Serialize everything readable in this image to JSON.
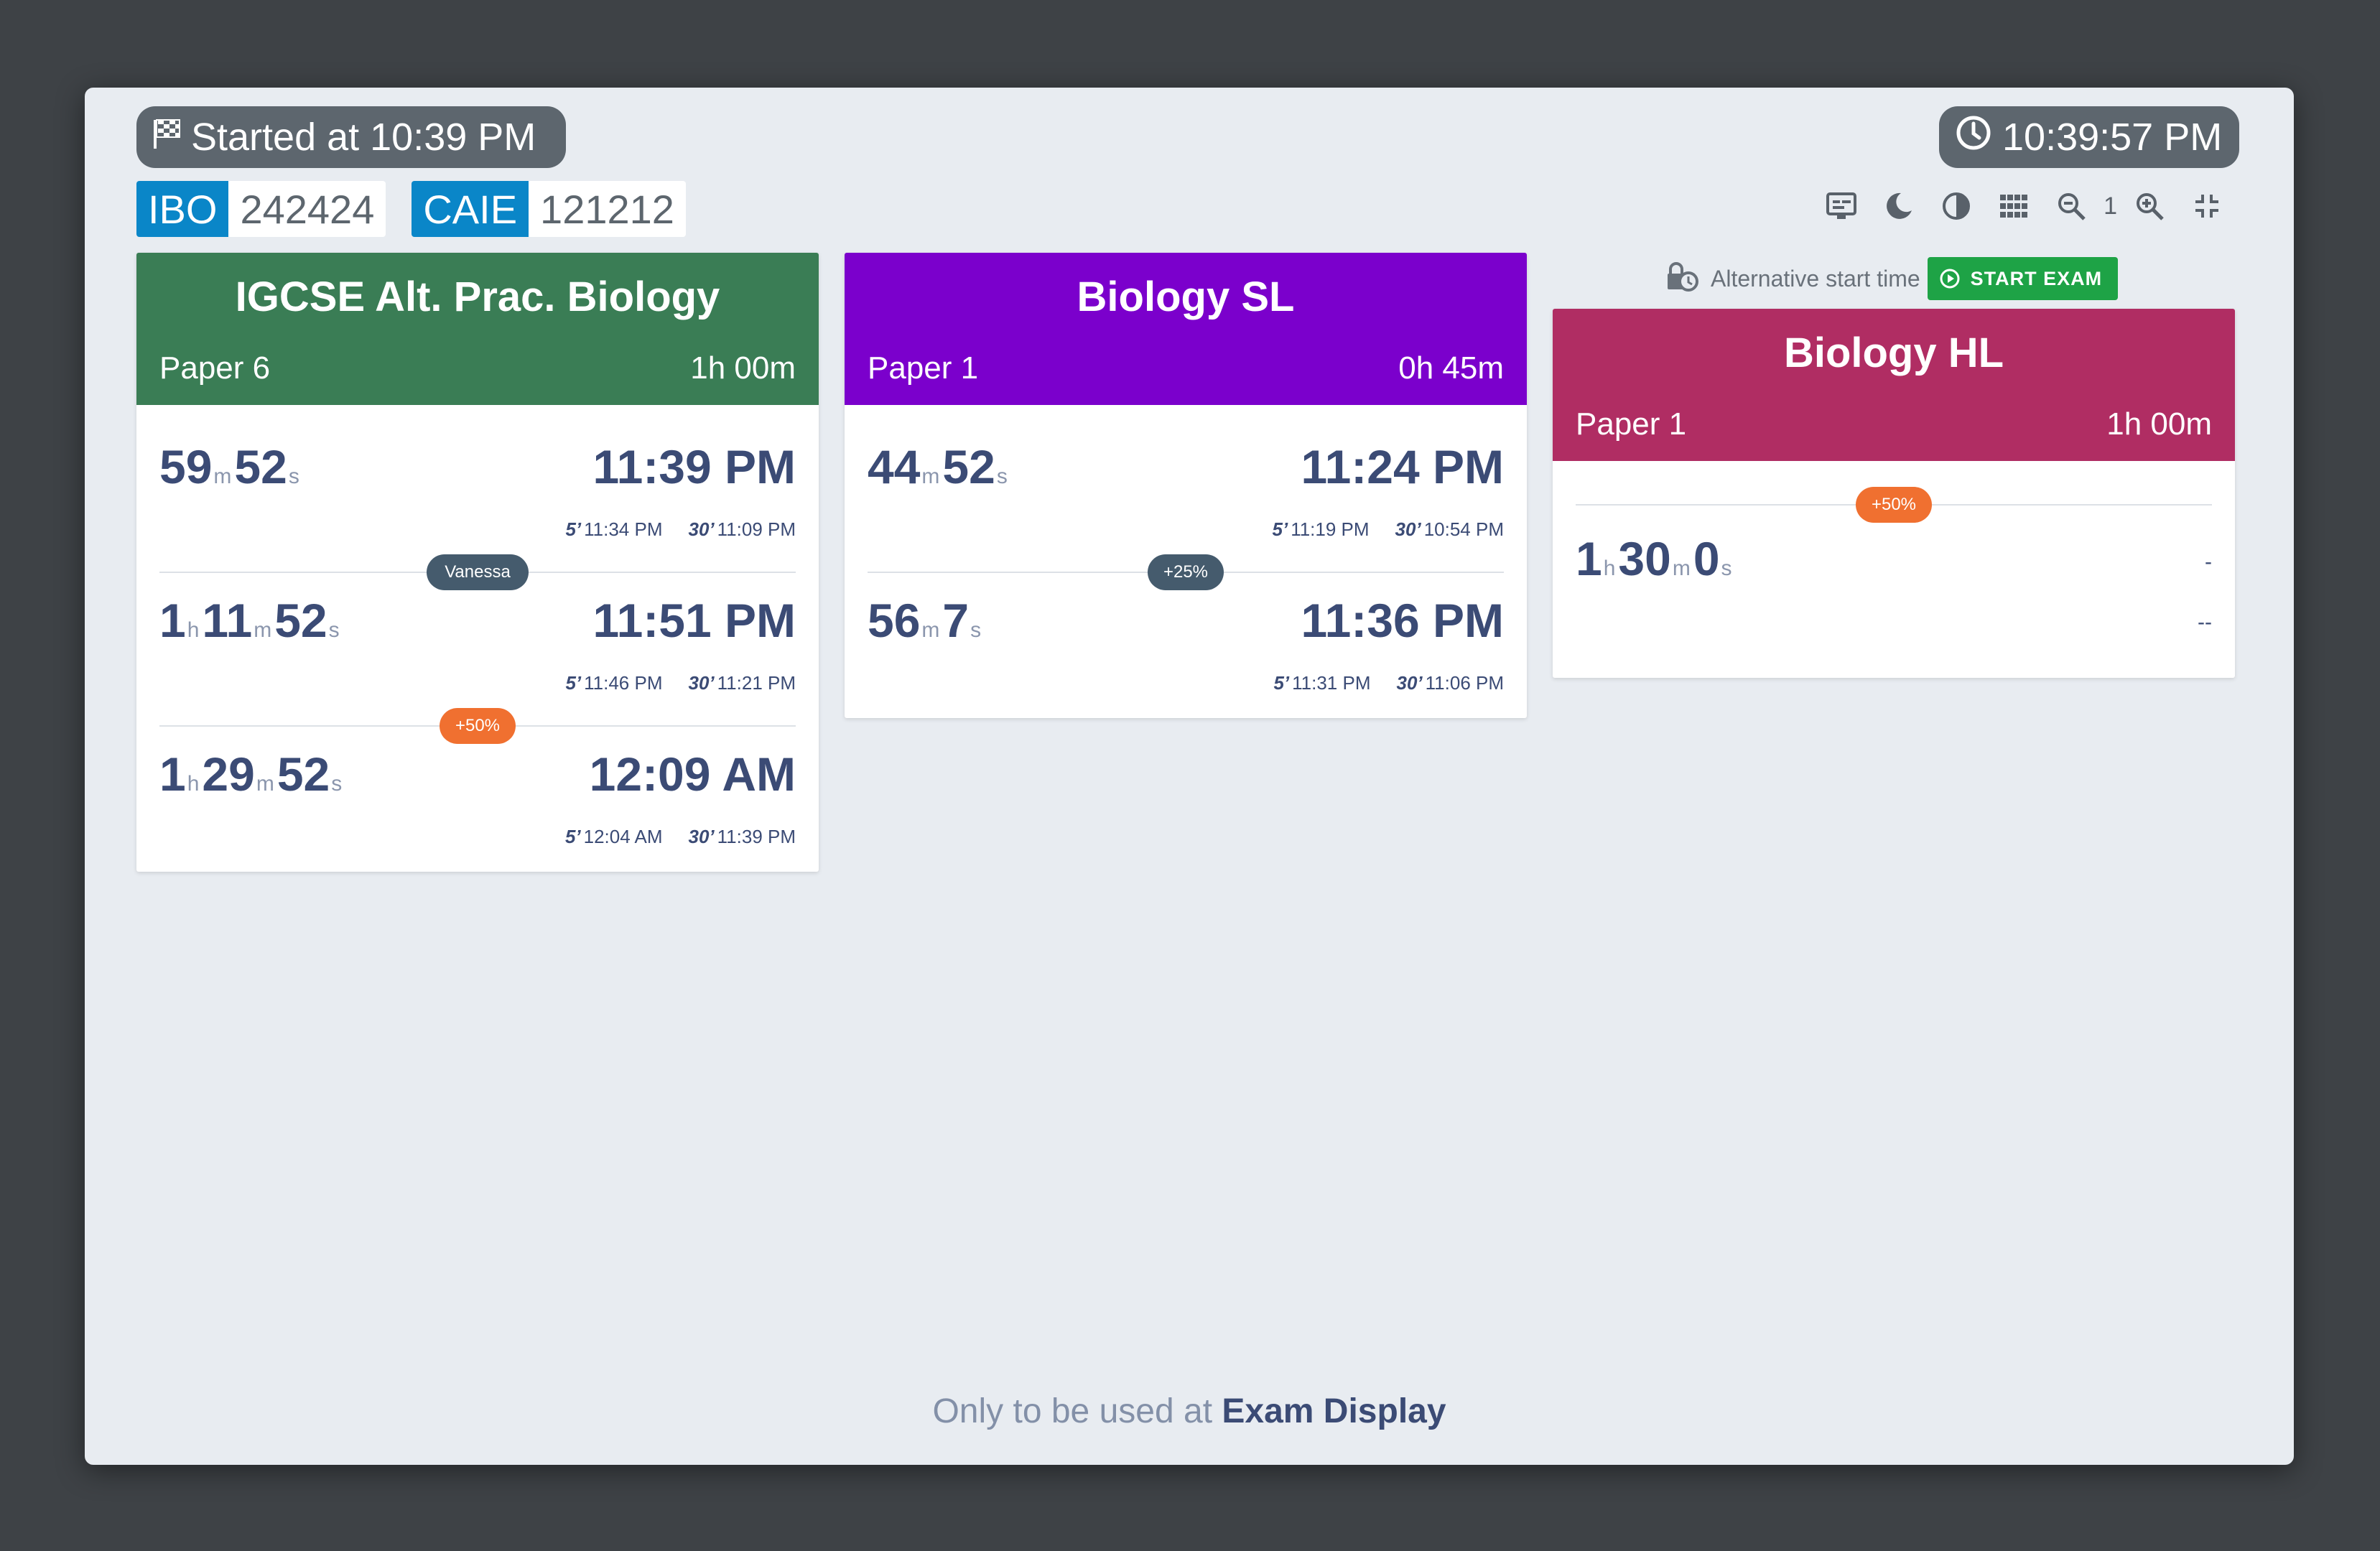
{
  "header": {
    "started_label": "Started at 10:39 PM",
    "clock": "10:39:57 PM",
    "centre_codes": [
      {
        "key": "IBO",
        "value": "242424"
      },
      {
        "key": "CAIE",
        "value": "121212"
      }
    ],
    "zoom_level": "1"
  },
  "cards": [
    {
      "title": "IGCSE Alt. Prac. Biology",
      "paper": "Paper 6",
      "duration": "1h 00m",
      "color": "#3a7d55",
      "rows": [
        {
          "m": "59",
          "s": "52",
          "end": "11:39 PM",
          "w5_label": "5’",
          "w5": "11:34 PM",
          "w30_label": "30’",
          "w30": "11:09 PM"
        },
        {
          "h": "1",
          "m": "11",
          "s": "52",
          "end": "11:51 PM",
          "w5_label": "5’",
          "w5": "11:46 PM",
          "w30_label": "30’",
          "w30": "11:21 PM"
        },
        {
          "h": "1",
          "m": "29",
          "s": "52",
          "end": "12:09 AM",
          "w5_label": "5’",
          "w5": "12:04 AM",
          "w30_label": "30’",
          "w30": "11:39 PM"
        }
      ],
      "badges": [
        "Vanessa",
        "+50%"
      ]
    },
    {
      "title": "Biology SL",
      "paper": "Paper 1",
      "duration": "0h 45m",
      "color": "#7b00cc",
      "rows": [
        {
          "m": "44",
          "s": "52",
          "end": "11:24 PM",
          "w5_label": "5’",
          "w5": "11:19 PM",
          "w30_label": "30’",
          "w30": "10:54 PM"
        },
        {
          "m": "56",
          "s": "7",
          "end": "11:36 PM",
          "w5_label": "5’",
          "w5": "11:31 PM",
          "w30_label": "30’",
          "w30": "11:06 PM"
        }
      ],
      "badges": [
        "+25%"
      ]
    },
    {
      "title": "Biology HL",
      "paper": "Paper 1",
      "duration": "1h 00m",
      "color": "#b02d63",
      "alt_start_label": "Alternative start time",
      "start_button": "START EXAM",
      "badges": [
        "+50%"
      ],
      "rows": [
        {
          "h": "1",
          "m": "30",
          "s": "0",
          "end": "-",
          "warn": "--"
        }
      ]
    }
  ],
  "units": {
    "h": "h",
    "m": "m",
    "s": "s"
  },
  "footer": {
    "prefix": "Only to be used at ",
    "strong": "Exam Display"
  },
  "colors": {
    "slate_badge": "#455b6d",
    "orange_badge": "#f07030",
    "start_green": "#1ea346",
    "code_blue": "#0a86c8"
  }
}
